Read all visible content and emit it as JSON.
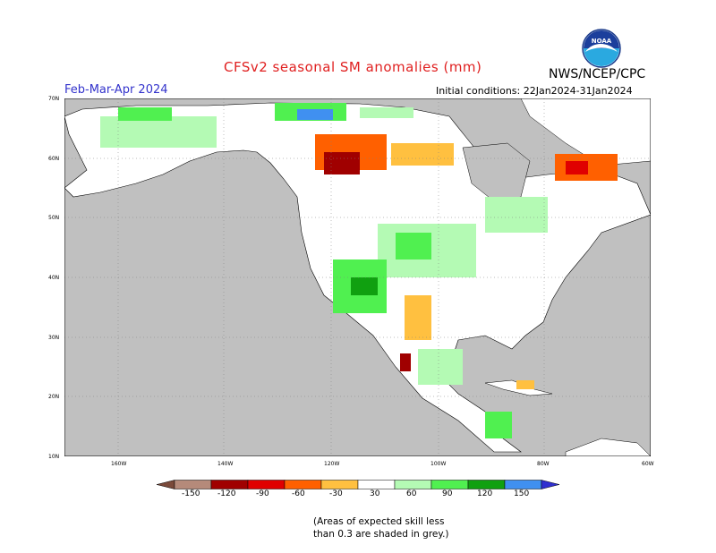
{
  "header": {
    "title": "CFSv2 seasonal SM anomalies (mm)",
    "agency": "NWS/NCEP/CPC",
    "period": "Feb-Mar-Apr 2024",
    "initial_conditions": "Initial conditions: 22Jan2024-31Jan2024"
  },
  "map": {
    "latitude_labels": [
      "70N",
      "60N",
      "50N",
      "40N",
      "30N",
      "20N",
      "10N"
    ],
    "longitude_labels": [
      "160W",
      "140W",
      "120W",
      "100W",
      "80W",
      "60W"
    ],
    "colors": {
      "ocean": "#c0c0c0",
      "land": "#ffffff",
      "grid": "#7f7f7f"
    }
  },
  "legend": {
    "labels": [
      "-150",
      "-120",
      "-90",
      "-60",
      "-30",
      "30",
      "60",
      "90",
      "120",
      "150"
    ],
    "colors": [
      "#7a4a3a",
      "#b58a7a",
      "#a00000",
      "#e00000",
      "#ff6000",
      "#ffc040",
      "#ffffff",
      "#b4fab4",
      "#50f050",
      "#10a010",
      "#4090f0",
      "#3030d0"
    ]
  },
  "note": {
    "line1": "(Areas of expected skill less",
    "line2": "than 0.3 are shaded in grey.)"
  }
}
